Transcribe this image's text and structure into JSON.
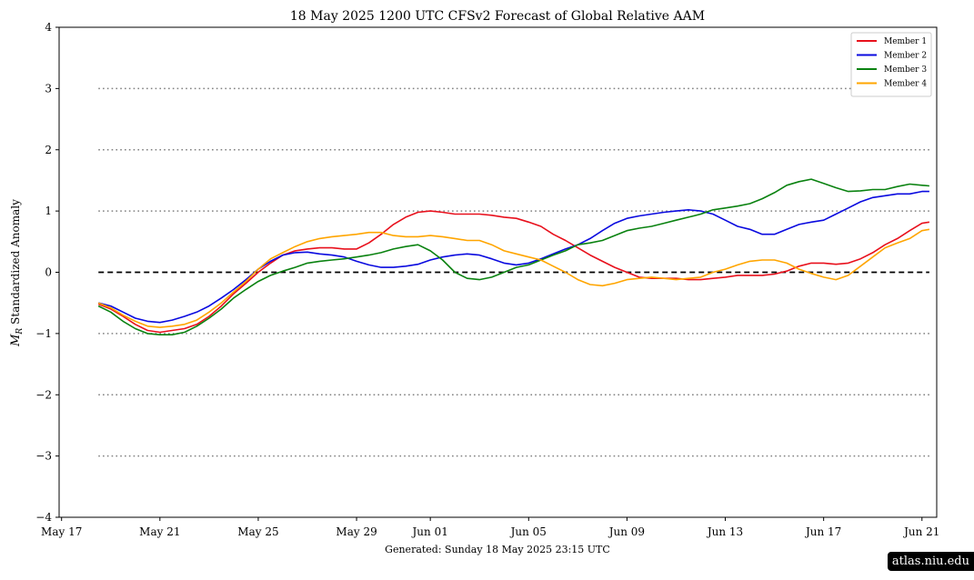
{
  "chart_data": {
    "type": "line",
    "title": "18  May  2025 1200 UTC   CFSv2 Forecast of Global Relative AAM",
    "ylabel_symbol": "M",
    "ylabel_subscript": "R",
    "ylabel_text": "Standardized Anomaly",
    "footer": "Generated: Sunday  18  May  2025  23:15 UTC",
    "watermark": "atlas.niu.edu",
    "x_tick_labels": [
      "May 17",
      "May 21",
      "May 25",
      "May 29",
      "Jun 01",
      "Jun 05",
      "Jun 09",
      "Jun 13",
      "Jun 17",
      "Jun 21"
    ],
    "x_tick_days": [
      0,
      4,
      8,
      12,
      15,
      19,
      23,
      27,
      31,
      35
    ],
    "xlim_days": [
      -0.1,
      35.6
    ],
    "ylim": [
      -4,
      4
    ],
    "y_ticks": [
      -4,
      -3,
      -2,
      -1,
      0,
      1,
      2,
      3,
      4
    ],
    "y_tick_labels": [
      "−4",
      "−3",
      "−2",
      "−1",
      "0",
      "1",
      "2",
      "3",
      "4"
    ],
    "dotted_reference_lines": [
      -3,
      -2,
      -1,
      1,
      2,
      3
    ],
    "dashed_zero_line": 0,
    "legend_position": "top-right",
    "colors": {
      "dotted": "#808080",
      "zero": "#000000"
    },
    "series": [
      {
        "name": "Member 1",
        "color": "#e8101c",
        "points": [
          [
            1.5,
            -0.52
          ],
          [
            2,
            -0.6
          ],
          [
            2.5,
            -0.72
          ],
          [
            3,
            -0.85
          ],
          [
            3.5,
            -0.95
          ],
          [
            4,
            -0.98
          ],
          [
            4.5,
            -0.95
          ],
          [
            5,
            -0.92
          ],
          [
            5.5,
            -0.85
          ],
          [
            6,
            -0.72
          ],
          [
            6.5,
            -0.55
          ],
          [
            7,
            -0.35
          ],
          [
            7.5,
            -0.18
          ],
          [
            8,
            0.0
          ],
          [
            8.5,
            0.15
          ],
          [
            9,
            0.28
          ],
          [
            9.5,
            0.35
          ],
          [
            10,
            0.38
          ],
          [
            10.5,
            0.4
          ],
          [
            11,
            0.4
          ],
          [
            11.5,
            0.38
          ],
          [
            12,
            0.38
          ],
          [
            12.5,
            0.48
          ],
          [
            13,
            0.62
          ],
          [
            13.5,
            0.78
          ],
          [
            14,
            0.9
          ],
          [
            14.5,
            0.98
          ],
          [
            15,
            1.0
          ],
          [
            15.5,
            0.98
          ],
          [
            16,
            0.95
          ],
          [
            16.5,
            0.95
          ],
          [
            17,
            0.95
          ],
          [
            17.5,
            0.93
          ],
          [
            18,
            0.9
          ],
          [
            18.5,
            0.88
          ],
          [
            19,
            0.82
          ],
          [
            19.5,
            0.75
          ],
          [
            20,
            0.62
          ],
          [
            20.5,
            0.52
          ],
          [
            21,
            0.4
          ],
          [
            21.5,
            0.28
          ],
          [
            22,
            0.18
          ],
          [
            22.5,
            0.08
          ],
          [
            23,
            0.0
          ],
          [
            23.5,
            -0.08
          ],
          [
            24,
            -0.1
          ],
          [
            24.5,
            -0.1
          ],
          [
            25,
            -0.1
          ],
          [
            25.5,
            -0.12
          ],
          [
            26,
            -0.12
          ],
          [
            26.5,
            -0.1
          ],
          [
            27,
            -0.08
          ],
          [
            27.5,
            -0.05
          ],
          [
            28,
            -0.05
          ],
          [
            28.5,
            -0.05
          ],
          [
            29,
            -0.03
          ],
          [
            29.5,
            0.02
          ],
          [
            30,
            0.1
          ],
          [
            30.5,
            0.15
          ],
          [
            31,
            0.15
          ],
          [
            31.5,
            0.13
          ],
          [
            32,
            0.15
          ],
          [
            32.5,
            0.22
          ],
          [
            33,
            0.32
          ],
          [
            33.5,
            0.45
          ],
          [
            34,
            0.55
          ],
          [
            34.5,
            0.68
          ],
          [
            35,
            0.8
          ],
          [
            35.3,
            0.82
          ]
        ]
      },
      {
        "name": "Member 2",
        "color": "#0a0adf",
        "points": [
          [
            1.5,
            -0.5
          ],
          [
            2,
            -0.55
          ],
          [
            2.5,
            -0.65
          ],
          [
            3,
            -0.75
          ],
          [
            3.5,
            -0.8
          ],
          [
            4,
            -0.82
          ],
          [
            4.5,
            -0.78
          ],
          [
            5,
            -0.72
          ],
          [
            5.5,
            -0.65
          ],
          [
            6,
            -0.55
          ],
          [
            6.5,
            -0.42
          ],
          [
            7,
            -0.28
          ],
          [
            7.5,
            -0.12
          ],
          [
            8,
            0.05
          ],
          [
            8.5,
            0.18
          ],
          [
            9,
            0.28
          ],
          [
            9.5,
            0.32
          ],
          [
            10,
            0.33
          ],
          [
            10.5,
            0.3
          ],
          [
            11,
            0.28
          ],
          [
            11.5,
            0.25
          ],
          [
            12,
            0.18
          ],
          [
            12.5,
            0.12
          ],
          [
            13,
            0.08
          ],
          [
            13.5,
            0.08
          ],
          [
            14,
            0.1
          ],
          [
            14.5,
            0.13
          ],
          [
            15,
            0.2
          ],
          [
            15.5,
            0.25
          ],
          [
            16,
            0.28
          ],
          [
            16.5,
            0.3
          ],
          [
            17,
            0.28
          ],
          [
            17.5,
            0.22
          ],
          [
            18,
            0.15
          ],
          [
            18.5,
            0.12
          ],
          [
            19,
            0.15
          ],
          [
            19.5,
            0.22
          ],
          [
            20,
            0.3
          ],
          [
            20.5,
            0.38
          ],
          [
            21,
            0.45
          ],
          [
            21.5,
            0.55
          ],
          [
            22,
            0.68
          ],
          [
            22.5,
            0.8
          ],
          [
            23,
            0.88
          ],
          [
            23.5,
            0.92
          ],
          [
            24,
            0.95
          ],
          [
            24.5,
            0.98
          ],
          [
            25,
            1.0
          ],
          [
            25.5,
            1.02
          ],
          [
            26,
            1.0
          ],
          [
            26.5,
            0.95
          ],
          [
            27,
            0.85
          ],
          [
            27.5,
            0.75
          ],
          [
            28,
            0.7
          ],
          [
            28.5,
            0.62
          ],
          [
            29,
            0.62
          ],
          [
            29.5,
            0.7
          ],
          [
            30,
            0.78
          ],
          [
            30.5,
            0.82
          ],
          [
            31,
            0.85
          ],
          [
            31.5,
            0.95
          ],
          [
            32,
            1.05
          ],
          [
            32.5,
            1.15
          ],
          [
            33,
            1.22
          ],
          [
            33.5,
            1.25
          ],
          [
            34,
            1.28
          ],
          [
            34.5,
            1.28
          ],
          [
            35,
            1.32
          ],
          [
            35.3,
            1.32
          ]
        ]
      },
      {
        "name": "Member 3",
        "color": "#0a8210",
        "points": [
          [
            1.5,
            -0.55
          ],
          [
            2,
            -0.65
          ],
          [
            2.5,
            -0.8
          ],
          [
            3,
            -0.92
          ],
          [
            3.5,
            -1.0
          ],
          [
            4,
            -1.02
          ],
          [
            4.5,
            -1.02
          ],
          [
            5,
            -0.98
          ],
          [
            5.5,
            -0.88
          ],
          [
            6,
            -0.75
          ],
          [
            6.5,
            -0.6
          ],
          [
            7,
            -0.42
          ],
          [
            7.5,
            -0.28
          ],
          [
            8,
            -0.15
          ],
          [
            8.5,
            -0.05
          ],
          [
            9,
            0.02
          ],
          [
            9.5,
            0.08
          ],
          [
            10,
            0.15
          ],
          [
            10.5,
            0.18
          ],
          [
            11,
            0.2
          ],
          [
            11.5,
            0.22
          ],
          [
            12,
            0.25
          ],
          [
            12.5,
            0.28
          ],
          [
            13,
            0.32
          ],
          [
            13.5,
            0.38
          ],
          [
            14,
            0.42
          ],
          [
            14.5,
            0.45
          ],
          [
            15,
            0.35
          ],
          [
            15.5,
            0.2
          ],
          [
            16,
            0.0
          ],
          [
            16.5,
            -0.1
          ],
          [
            17,
            -0.12
          ],
          [
            17.5,
            -0.08
          ],
          [
            18,
            0.0
          ],
          [
            18.5,
            0.08
          ],
          [
            19,
            0.12
          ],
          [
            19.5,
            0.2
          ],
          [
            20,
            0.28
          ],
          [
            20.5,
            0.35
          ],
          [
            21,
            0.45
          ],
          [
            21.5,
            0.48
          ],
          [
            22,
            0.52
          ],
          [
            22.5,
            0.6
          ],
          [
            23,
            0.68
          ],
          [
            23.5,
            0.72
          ],
          [
            24,
            0.75
          ],
          [
            24.5,
            0.8
          ],
          [
            25,
            0.85
          ],
          [
            25.5,
            0.9
          ],
          [
            26,
            0.95
          ],
          [
            26.5,
            1.02
          ],
          [
            27,
            1.05
          ],
          [
            27.5,
            1.08
          ],
          [
            28,
            1.12
          ],
          [
            28.5,
            1.2
          ],
          [
            29,
            1.3
          ],
          [
            29.5,
            1.42
          ],
          [
            30,
            1.48
          ],
          [
            30.5,
            1.52
          ],
          [
            31,
            1.45
          ],
          [
            31.5,
            1.38
          ],
          [
            32,
            1.32
          ],
          [
            32.5,
            1.33
          ],
          [
            33,
            1.35
          ],
          [
            33.5,
            1.35
          ],
          [
            34,
            1.4
          ],
          [
            34.5,
            1.44
          ],
          [
            35,
            1.42
          ],
          [
            35.3,
            1.41
          ]
        ]
      },
      {
        "name": "Member 4",
        "color": "#ffa500",
        "points": [
          [
            1.5,
            -0.5
          ],
          [
            2,
            -0.58
          ],
          [
            2.5,
            -0.7
          ],
          [
            3,
            -0.8
          ],
          [
            3.5,
            -0.88
          ],
          [
            4,
            -0.9
          ],
          [
            4.5,
            -0.88
          ],
          [
            5,
            -0.85
          ],
          [
            5.5,
            -0.78
          ],
          [
            6,
            -0.65
          ],
          [
            6.5,
            -0.5
          ],
          [
            7,
            -0.32
          ],
          [
            7.5,
            -0.15
          ],
          [
            8,
            0.05
          ],
          [
            8.5,
            0.22
          ],
          [
            9,
            0.32
          ],
          [
            9.5,
            0.42
          ],
          [
            10,
            0.5
          ],
          [
            10.5,
            0.55
          ],
          [
            11,
            0.58
          ],
          [
            11.5,
            0.6
          ],
          [
            12,
            0.62
          ],
          [
            12.5,
            0.65
          ],
          [
            13,
            0.65
          ],
          [
            13.5,
            0.6
          ],
          [
            14,
            0.58
          ],
          [
            14.5,
            0.58
          ],
          [
            15,
            0.6
          ],
          [
            15.5,
            0.58
          ],
          [
            16,
            0.55
          ],
          [
            16.5,
            0.52
          ],
          [
            17,
            0.52
          ],
          [
            17.5,
            0.45
          ],
          [
            18,
            0.35
          ],
          [
            18.5,
            0.3
          ],
          [
            19,
            0.25
          ],
          [
            19.5,
            0.2
          ],
          [
            20,
            0.1
          ],
          [
            20.5,
            0.0
          ],
          [
            21,
            -0.12
          ],
          [
            21.5,
            -0.2
          ],
          [
            22,
            -0.22
          ],
          [
            22.5,
            -0.18
          ],
          [
            23,
            -0.12
          ],
          [
            23.5,
            -0.1
          ],
          [
            24,
            -0.08
          ],
          [
            24.5,
            -0.1
          ],
          [
            25,
            -0.12
          ],
          [
            25.5,
            -0.1
          ],
          [
            26,
            -0.08
          ],
          [
            26.5,
            0.0
          ],
          [
            27,
            0.05
          ],
          [
            27.5,
            0.12
          ],
          [
            28,
            0.18
          ],
          [
            28.5,
            0.2
          ],
          [
            29,
            0.2
          ],
          [
            29.5,
            0.15
          ],
          [
            30,
            0.05
          ],
          [
            30.5,
            -0.02
          ],
          [
            31,
            -0.08
          ],
          [
            31.5,
            -0.12
          ],
          [
            32,
            -0.05
          ],
          [
            32.5,
            0.1
          ],
          [
            33,
            0.25
          ],
          [
            33.5,
            0.4
          ],
          [
            34,
            0.48
          ],
          [
            34.5,
            0.55
          ],
          [
            35,
            0.68
          ],
          [
            35.3,
            0.7
          ]
        ]
      }
    ]
  }
}
